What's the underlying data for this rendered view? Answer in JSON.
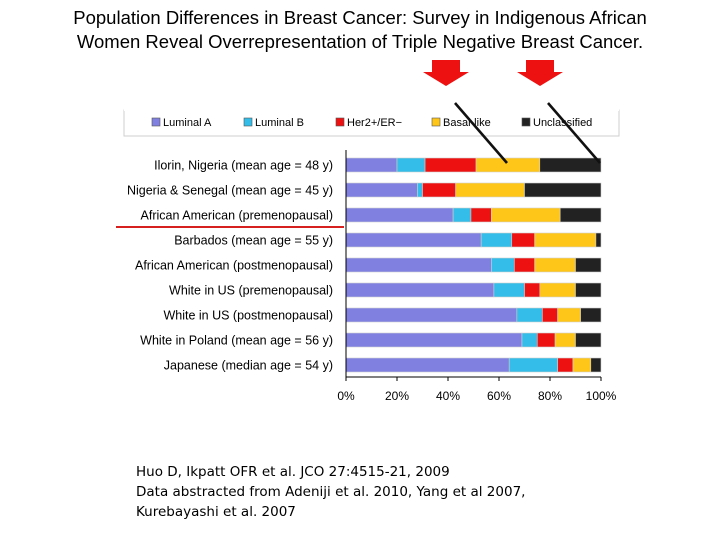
{
  "slide": {
    "title_line1": "Population Differences in Breast Cancer: Survey in Indigenous African",
    "title_line2": "Women Reveal Overrepresentation of Triple Negative Breast Cancer.",
    "citation_lines": [
      "Huo D, Ikpatt OFR et al. JCO 27:4515-21, 2009",
      "Data abstracted from Adeniji et al. 2010, Yang et al 2007,",
      "Kurebayashi et al. 2007"
    ]
  },
  "chart_data": {
    "type": "bar",
    "orientation": "horizontal",
    "stacked": true,
    "title": "",
    "xlabel": "",
    "ylabel": "",
    "xlim": [
      0,
      100
    ],
    "x_ticks": [
      "0%",
      "20%",
      "40%",
      "60%",
      "80%",
      "100%"
    ],
    "grid": false,
    "legend_position": "top",
    "categories": [
      "Ilorin, Nigeria (mean age = 48 y)",
      "Nigeria & Senegal (mean age = 45 y)",
      "African American (premenopausal)",
      "Barbados (mean age = 55 y)",
      "African American (postmenopausal)",
      "White in US (premenopausal)",
      "White in US (postmenopausal)",
      "White in Poland (mean age = 56 y)",
      "Japanese (median age = 54 y)"
    ],
    "series": [
      {
        "name": "Luminal A",
        "color": "#8080e0",
        "values": [
          20,
          28,
          42,
          53,
          57,
          58,
          67,
          69,
          64
        ]
      },
      {
        "name": "Luminal B",
        "color": "#33bde8",
        "values": [
          11,
          2,
          7,
          12,
          9,
          12,
          10,
          6,
          19
        ]
      },
      {
        "name": "Her2+/ER−",
        "color": "#ee1111",
        "values": [
          20,
          13,
          8,
          9,
          8,
          6,
          6,
          7,
          6
        ]
      },
      {
        "name": "Basal-like",
        "color": "#ffc61a",
        "values": [
          25,
          27,
          27,
          24,
          16,
          14,
          9,
          8,
          7
        ]
      },
      {
        "name": "Unclassified",
        "color": "#222222",
        "values": [
          24,
          30,
          16,
          2,
          10,
          10,
          8,
          10,
          4
        ]
      }
    ],
    "highlight_category": "African American (premenopausal)",
    "annotation_arrow_color": "#ee1111"
  }
}
